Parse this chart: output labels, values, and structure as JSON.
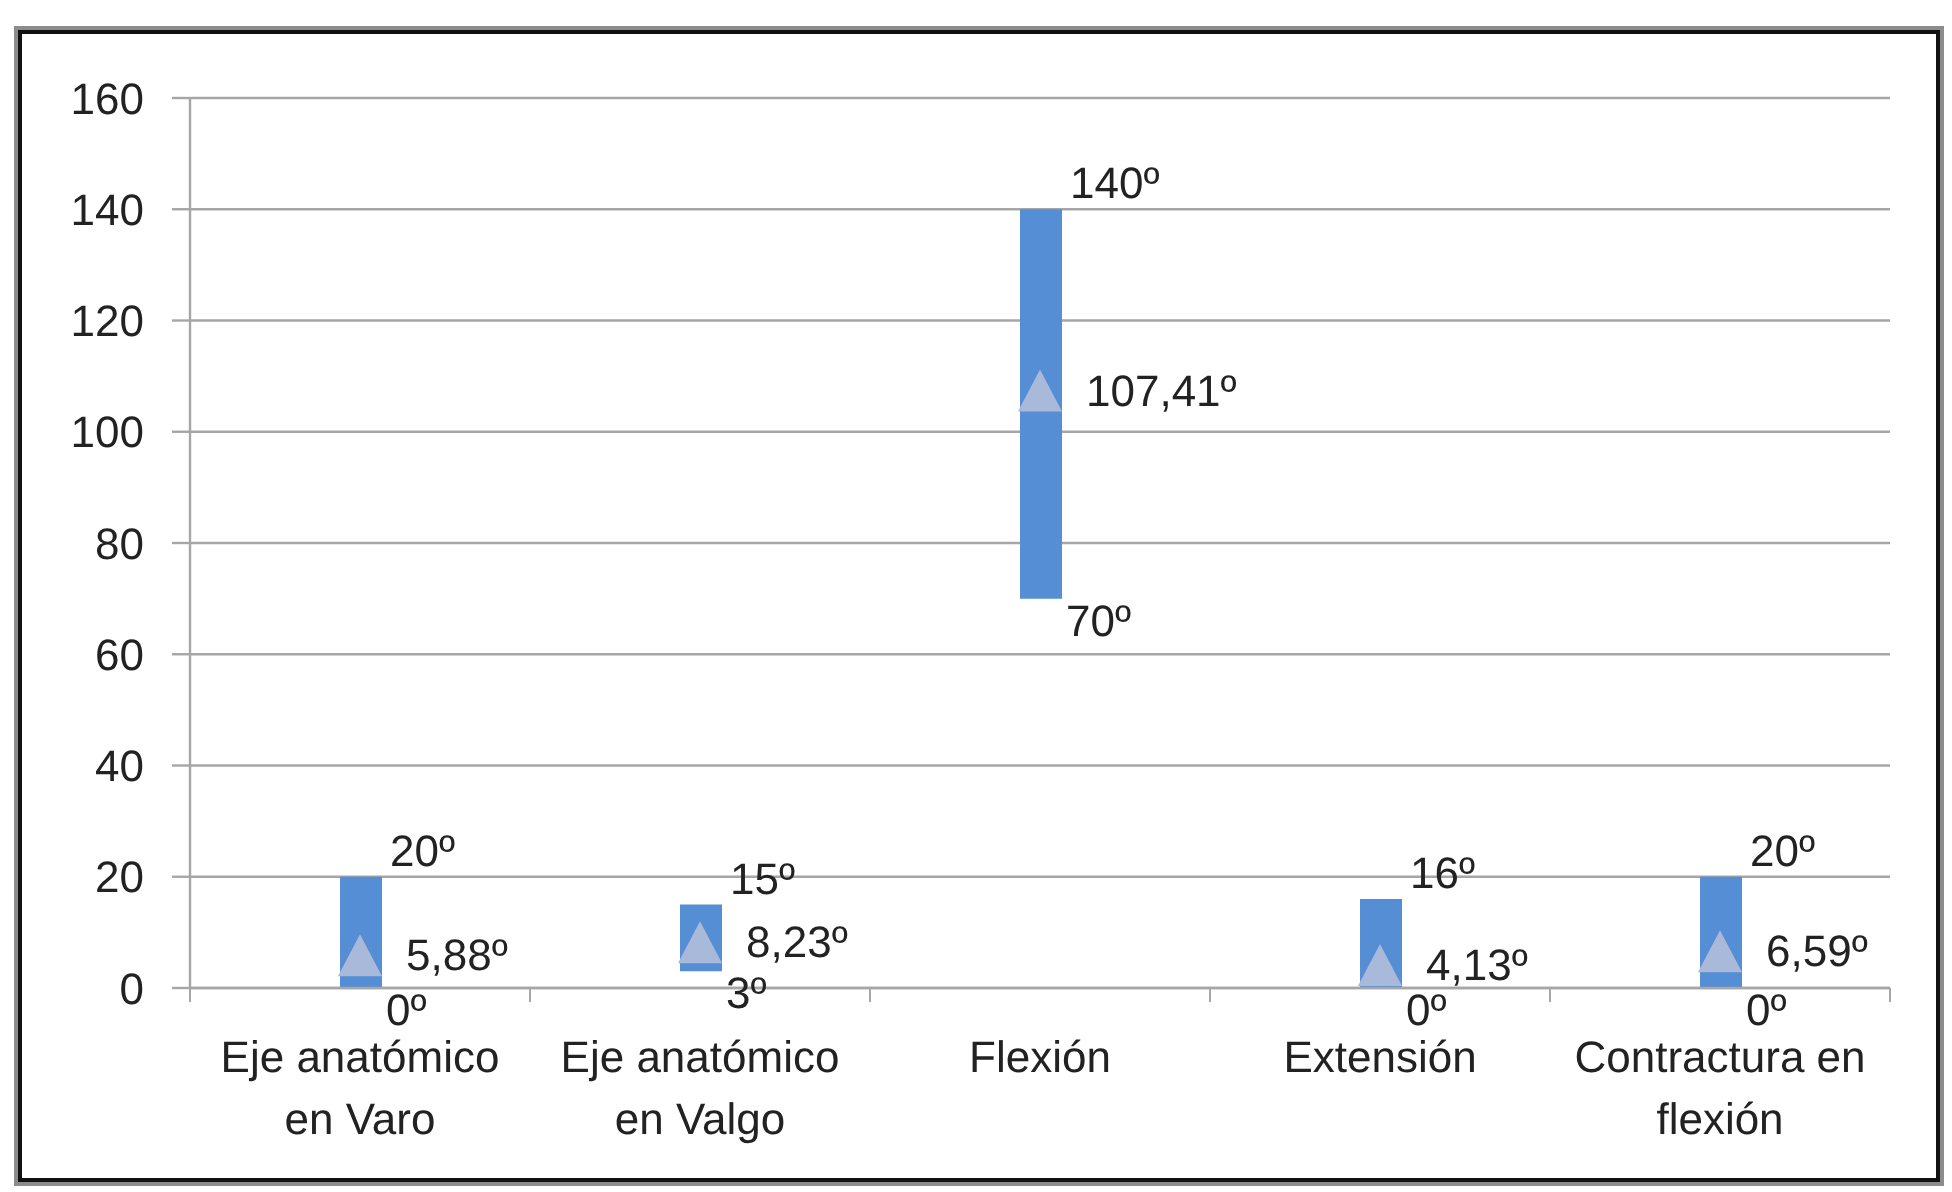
{
  "chart_data": {
    "type": "bar",
    "categories": [
      "Eje anatómico en Varo",
      "Eje anatómico en Valgo",
      "Flexión",
      "Extensión",
      "Contractura en flexión"
    ],
    "ylim": [
      0,
      160
    ],
    "yticks": [
      0,
      20,
      40,
      60,
      80,
      100,
      120,
      140,
      160
    ],
    "grid": "y",
    "series": [
      {
        "color": "#558ed5",
        "base": [
          0,
          3,
          70,
          0,
          0
        ],
        "values": [
          20,
          12,
          70,
          16,
          20
        ]
      },
      {
        "type": "scatter",
        "color": "#a9b9d9",
        "marker": "triangle",
        "values": [
          5.88,
          8.23,
          107.41,
          4.13,
          6.59
        ],
        "value_labels": [
          "5,88º",
          "8,23º",
          "107,41º",
          "4,13º",
          "6,59º"
        ]
      }
    ],
    "annotations": [
      {
        "text": "20º",
        "x": "Eje anatómico en Varo",
        "y": 20
      },
      {
        "text": "0º",
        "x": "Eje anatómico en Varo",
        "y": 0
      },
      {
        "text": "15º",
        "x": "Eje anatómico en Valgo",
        "y": 15
      },
      {
        "text": "3º",
        "x": "Eje anatómico en Valgo",
        "y": 3
      },
      {
        "text": "140º",
        "x": "Flexión",
        "y": 140
      },
      {
        "text": "70º",
        "x": "Flexión",
        "y": 70
      },
      {
        "text": "16º",
        "x": "Extensión",
        "y": 16
      },
      {
        "text": "0º",
        "x": "Extensión",
        "y": 0
      },
      {
        "text": "20º",
        "x": "Contractura en flexión",
        "y": 20
      },
      {
        "text": "0º",
        "x": "Contractura en flexión",
        "y": 0
      }
    ]
  }
}
